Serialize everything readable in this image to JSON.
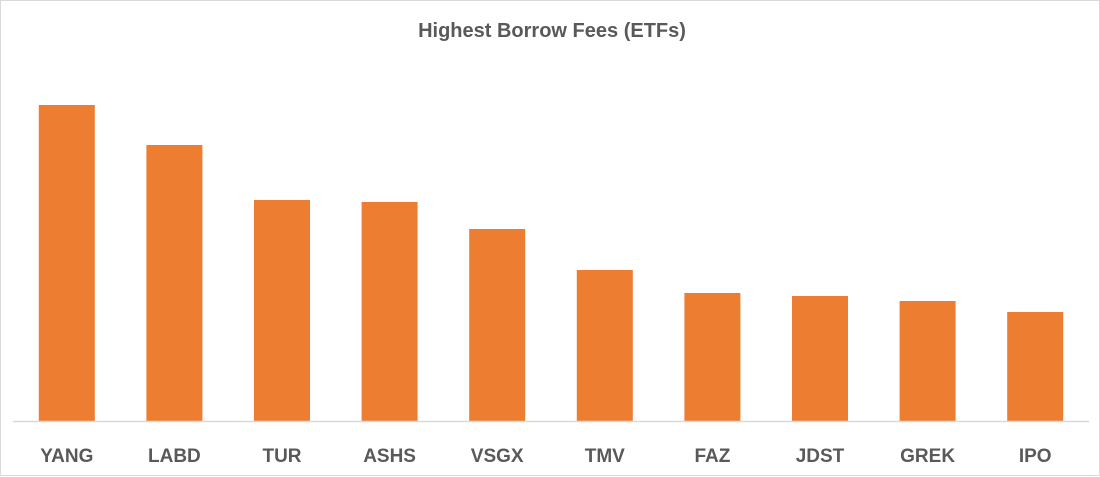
{
  "chart_data": {
    "type": "bar",
    "title": "Highest Borrow Fees (ETFs)",
    "xlabel": "",
    "ylabel": "",
    "categories": [
      "YANG",
      "LABD",
      "TUR",
      "ASHS",
      "VSGX",
      "TMV",
      "FAZ",
      "JDST",
      "GREK",
      "IPO"
    ],
    "values": [
      316,
      276,
      221,
      219,
      192,
      151,
      128,
      125,
      120,
      109
    ],
    "ylim": [
      0,
      340
    ],
    "grid": false,
    "legend": "none",
    "bar_color": "#ED7D31",
    "axis_color": "#D9D9D9",
    "text_color": "#595959"
  }
}
